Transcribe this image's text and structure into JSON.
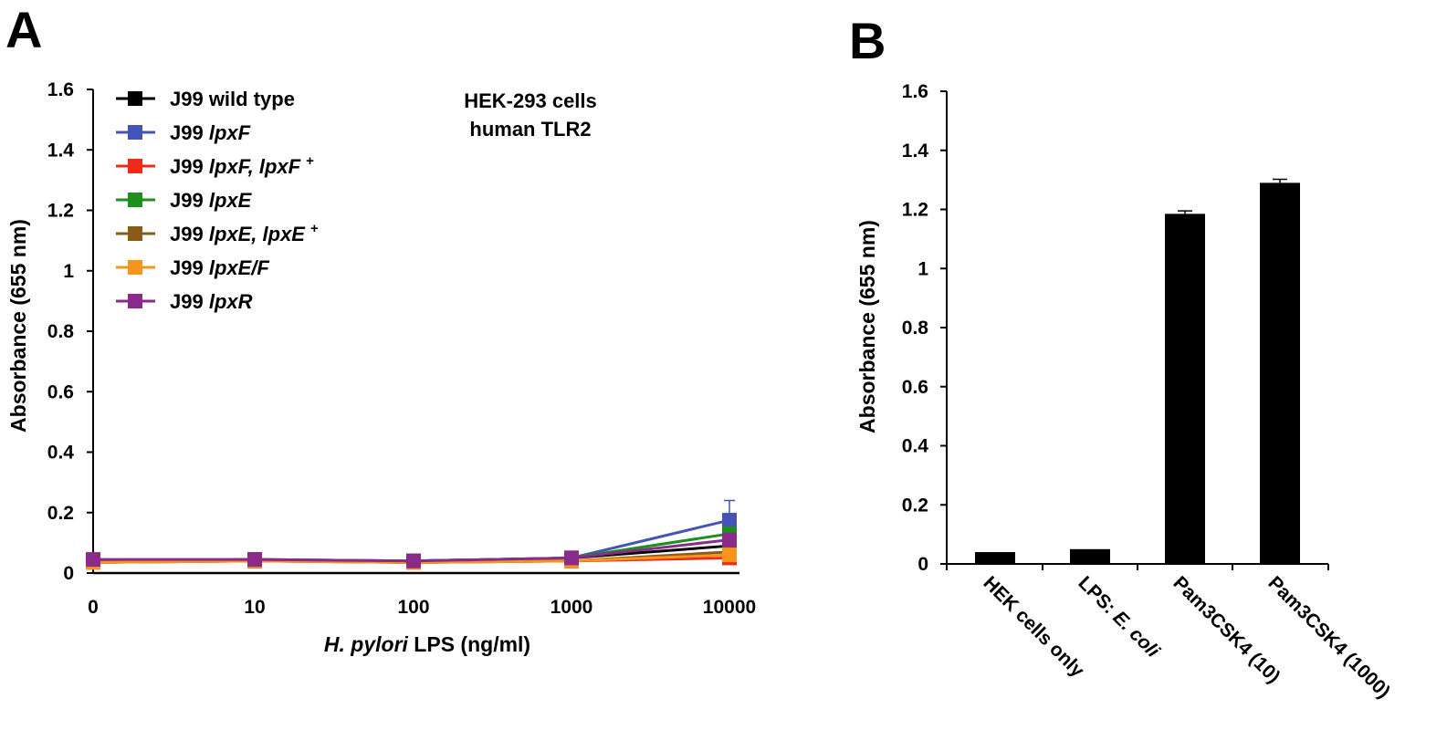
{
  "chart_data": [
    {
      "panel": "A",
      "type": "line",
      "title": "HEK-293 cells",
      "subtitle": "human TLR2",
      "xlabel_italic": "H. pylori",
      "xlabel_rest": " LPS (ng/ml)",
      "ylabel": "Absorbance (655 nm)",
      "ylim": [
        0,
        1.6
      ],
      "yticks": [
        "0",
        "0.2",
        "0.4",
        "0.6",
        "0.8",
        "1",
        "1.2",
        "1.4",
        "1.6"
      ],
      "categories": [
        "0",
        "10",
        "100",
        "1000",
        "10000"
      ],
      "legend_position": "top-left",
      "grid": false,
      "series": [
        {
          "name_plain": "J99 wild type",
          "name_italic": "",
          "sup": "",
          "color": "#000000",
          "values": [
            0.04,
            0.04,
            0.04,
            0.05,
            0.09
          ]
        },
        {
          "name_plain": "J99 ",
          "name_italic": "lpxF",
          "sup": "",
          "color": "#4455b5",
          "values": [
            0.04,
            0.045,
            0.04,
            0.05,
            0.175
          ],
          "error_last": 0.065
        },
        {
          "name_plain": "J99 ",
          "name_italic": "lpxF, lpxF",
          "sup": "+",
          "color": "#ee2a1b",
          "values": [
            0.035,
            0.04,
            0.035,
            0.04,
            0.05
          ]
        },
        {
          "name_plain": "J99 ",
          "name_italic": "lpxE",
          "sup": "",
          "color": "#1d8f1d",
          "values": [
            0.04,
            0.045,
            0.04,
            0.05,
            0.13
          ]
        },
        {
          "name_plain": "J99 ",
          "name_italic": "lpxE, lpxE",
          "sup": "+",
          "color": "#8b5a1a",
          "values": [
            0.035,
            0.04,
            0.035,
            0.04,
            0.07
          ]
        },
        {
          "name_plain": "J99 ",
          "name_italic": "lpxE/F",
          "sup": "",
          "color": "#f7941d",
          "values": [
            0.035,
            0.04,
            0.035,
            0.04,
            0.06
          ]
        },
        {
          "name_plain": "J99 ",
          "name_italic": "lpxR",
          "sup": "",
          "color": "#8a2a8a",
          "values": [
            0.045,
            0.045,
            0.04,
            0.05,
            0.11
          ]
        }
      ]
    },
    {
      "panel": "B",
      "type": "bar",
      "ylabel": "Absorbance (655 nm)",
      "ylim": [
        0,
        1.6
      ],
      "yticks": [
        "0",
        "0.2",
        "0.4",
        "0.6",
        "0.8",
        "1",
        "1.2",
        "1.4",
        "1.6"
      ],
      "categories": [
        {
          "plain": "HEK cells only",
          "italic": ""
        },
        {
          "plain": "LPS:  ",
          "italic": "E. coli"
        },
        {
          "plain": "Pam3CSK4  (10)",
          "italic": ""
        },
        {
          "plain": "Pam3CSK4  (1000)",
          "italic": ""
        }
      ],
      "values": [
        0.04,
        0.05,
        1.185,
        1.29
      ],
      "errors": [
        0,
        0,
        0.01,
        0.012
      ],
      "color": "#000000",
      "grid": false
    }
  ]
}
